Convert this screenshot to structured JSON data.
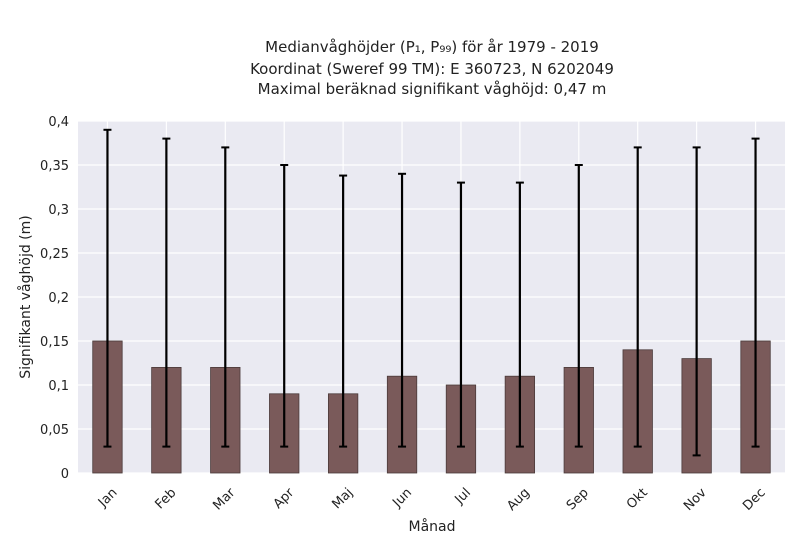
{
  "chart_data": {
    "type": "bar",
    "title": [
      "Medianvåghöjder (P₁, P₉₉) för år 1979 - 2019",
      "Koordinat (Sweref 99 TM): E 360723, N 6202049",
      "Maximal beräknad signifikant våghöjd: 0,47 m"
    ],
    "xlabel": "Månad",
    "ylabel": "Signifikant våghöjd (m)",
    "ylim": [
      0,
      0.4
    ],
    "yticks": [
      0,
      0.05,
      0.1,
      0.15,
      0.2,
      0.25,
      0.3,
      0.35,
      0.4
    ],
    "ytick_labels": [
      "0",
      "0,05",
      "0,1",
      "0,15",
      "0,2",
      "0,25",
      "0,3",
      "0,35",
      "0,4"
    ],
    "categories": [
      "Jan",
      "Feb",
      "Mar",
      "Apr",
      "Maj",
      "Jun",
      "Jul",
      "Aug",
      "Sep",
      "Okt",
      "Nov",
      "Dec"
    ],
    "series": [
      {
        "values": [
          0.15,
          0.12,
          0.12,
          0.09,
          0.09,
          0.11,
          0.1,
          0.11,
          0.12,
          0.14,
          0.13,
          0.15
        ],
        "err_low": [
          0.03,
          0.03,
          0.03,
          0.03,
          0.03,
          0.03,
          0.03,
          0.03,
          0.03,
          0.03,
          0.02,
          0.03
        ],
        "err_high": [
          0.39,
          0.38,
          0.37,
          0.35,
          0.338,
          0.34,
          0.33,
          0.33,
          0.35,
          0.37,
          0.37,
          0.38
        ]
      }
    ],
    "grid": true,
    "colors": {
      "bar": "#7a5a5a",
      "bar_edge": "#4a3a3a",
      "plot_background": "#eaeaf2",
      "grid": "#ffffff",
      "errorbar": "#000000"
    }
  }
}
